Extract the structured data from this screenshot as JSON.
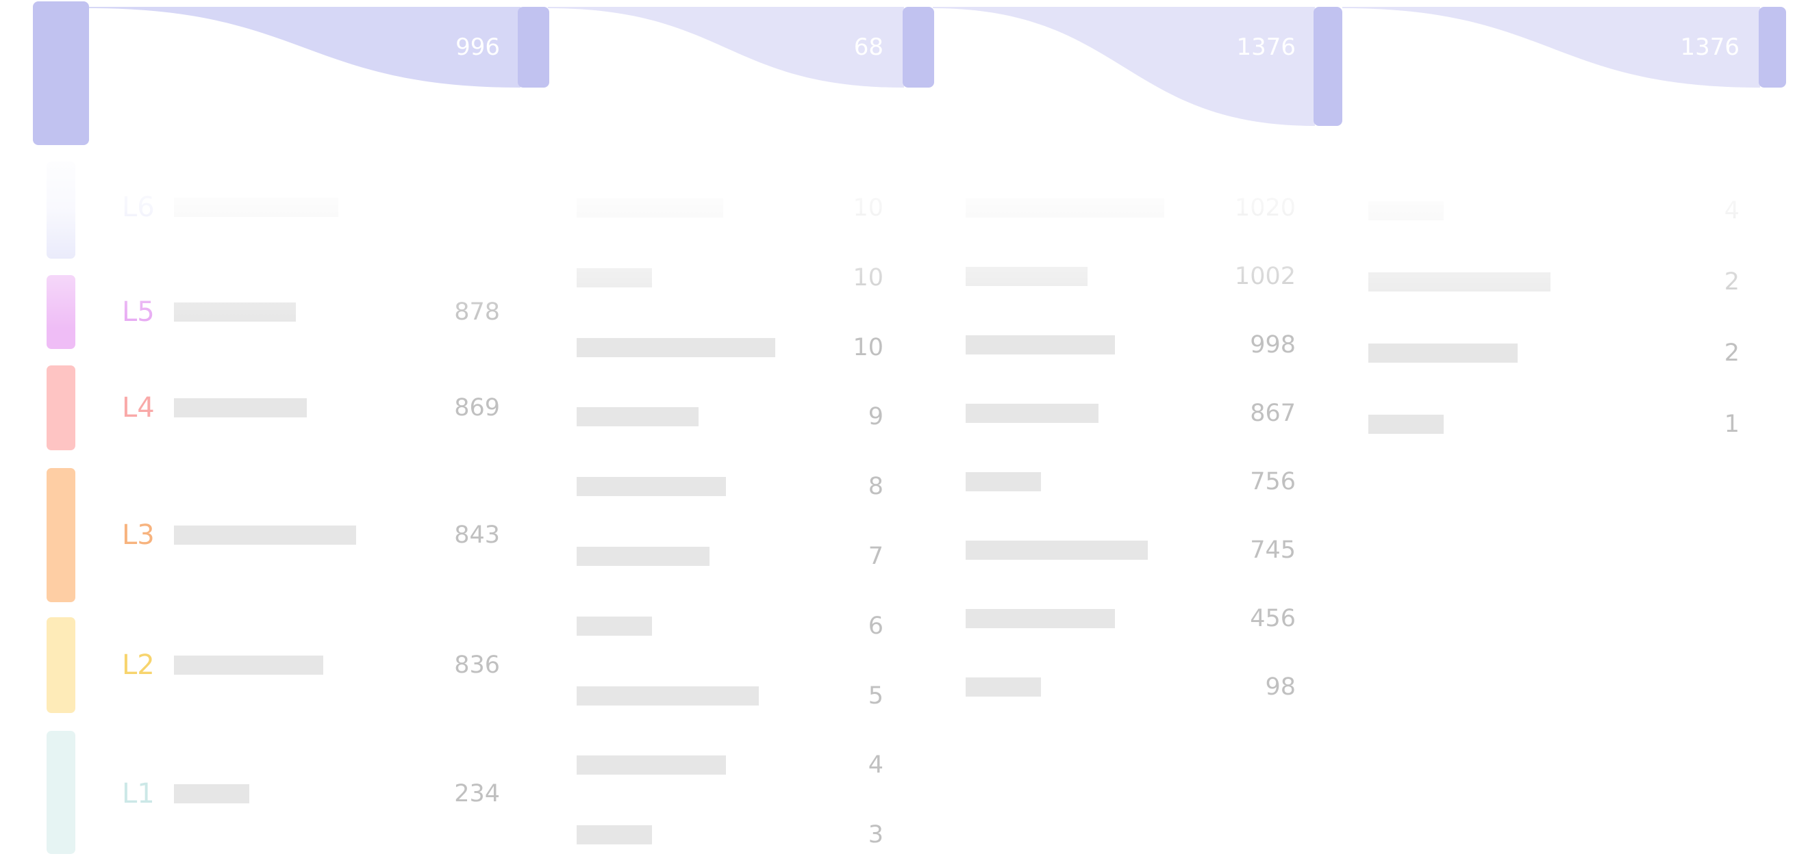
{
  "colors": {
    "flow_node": "#c1c2f0",
    "flow_band_dark": "#d6d7f6",
    "flow_band_light": "#e3e3f8",
    "skeleton": "#e6e6e6",
    "value_text": "#bdbdbd"
  },
  "flow": {
    "values": [
      "996",
      "68",
      "1376",
      "1376"
    ]
  },
  "levels": [
    {
      "label": "L6",
      "color": "#d4d6f7",
      "text_color": "#c3c5f2",
      "value": ""
    },
    {
      "label": "L5",
      "color": "#efbdf6",
      "text_color": "#e6a6f2",
      "value": "878"
    },
    {
      "label": "L4",
      "color": "#fec4c3",
      "text_color": "#f9a9a8",
      "value": "869"
    },
    {
      "label": "L3",
      "color": "#fecea4",
      "text_color": "#f7b37e",
      "value": "843"
    },
    {
      "label": "L2",
      "color": "#feebb8",
      "text_color": "#f7d46d",
      "value": "836"
    },
    {
      "label": "L1",
      "color": "#e6f4f3",
      "text_color": "#cce8e7",
      "value": "234"
    }
  ],
  "columns": [
    {
      "values": [
        "10",
        "10",
        "10",
        "9",
        "8",
        "7",
        "6",
        "5",
        "4",
        "3"
      ]
    },
    {
      "values": [
        "1020",
        "1002",
        "998",
        "867",
        "756",
        "745",
        "456",
        "98"
      ]
    },
    {
      "values": [
        "4",
        "2",
        "2",
        "1"
      ]
    }
  ]
}
